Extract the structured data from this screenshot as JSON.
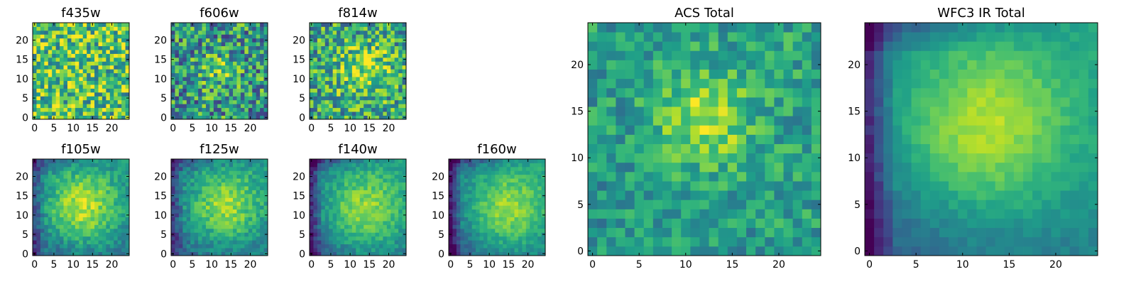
{
  "chart_data": [
    {
      "id": "f435w",
      "type": "heatmap",
      "title": "f435w",
      "grid_size": 25,
      "mode": "noise",
      "base": 0.7,
      "noise": 0.35,
      "seed": 1,
      "xlim": [
        -0.5,
        24.5
      ],
      "ylim": [
        -0.5,
        24.5
      ],
      "xticks": [
        0,
        5,
        10,
        15,
        20
      ],
      "yticks": [
        0,
        5,
        10,
        15,
        20
      ],
      "colormap": "viridis"
    },
    {
      "id": "f606w",
      "type": "heatmap",
      "title": "f606w",
      "grid_size": 25,
      "mode": "noise",
      "base": 0.52,
      "noise": 0.35,
      "peak": 0.25,
      "peak_x": 12,
      "peak_y": 12,
      "sigma": 3,
      "seed": 2,
      "xlim": [
        -0.5,
        24.5
      ],
      "ylim": [
        -0.5,
        24.5
      ],
      "xticks": [
        0,
        5,
        10,
        15,
        20
      ],
      "yticks": [
        0,
        5,
        10,
        15,
        20
      ],
      "colormap": "viridis"
    },
    {
      "id": "f814w",
      "type": "heatmap",
      "title": "f814w",
      "grid_size": 25,
      "mode": "noise",
      "base": 0.58,
      "noise": 0.32,
      "peak": 0.3,
      "peak_x": 14,
      "peak_y": 12,
      "sigma": 5,
      "seed": 3,
      "xlim": [
        -0.5,
        24.5
      ],
      "ylim": [
        -0.5,
        24.5
      ],
      "xticks": [
        0,
        5,
        10,
        15,
        20
      ],
      "yticks": [
        0,
        5,
        10,
        15,
        20
      ],
      "colormap": "viridis"
    },
    {
      "id": "f105w",
      "type": "heatmap",
      "title": "f105w",
      "grid_size": 25,
      "mode": "smooth",
      "base": 0.4,
      "noise": 0.12,
      "peak": 0.5,
      "peak_x": 12,
      "peak_y": 12,
      "sigma": 7,
      "grad": 0.2,
      "seed": 4,
      "xlim": [
        -0.5,
        24.5
      ],
      "ylim": [
        -0.5,
        24.5
      ],
      "xticks": [
        0,
        5,
        10,
        15,
        20
      ],
      "yticks": [
        0,
        5,
        10,
        15,
        20
      ],
      "colormap": "viridis"
    },
    {
      "id": "f125w",
      "type": "heatmap",
      "title": "f125w",
      "grid_size": 25,
      "mode": "smooth",
      "base": 0.4,
      "noise": 0.12,
      "peak": 0.45,
      "peak_x": 13,
      "peak_y": 12,
      "sigma": 7,
      "grad": 0.22,
      "seed": 5,
      "xlim": [
        -0.5,
        24.5
      ],
      "ylim": [
        -0.5,
        24.5
      ],
      "xticks": [
        0,
        5,
        10,
        15,
        20
      ],
      "yticks": [
        0,
        5,
        10,
        15,
        20
      ],
      "colormap": "viridis"
    },
    {
      "id": "f140w",
      "type": "heatmap",
      "title": "f140w",
      "grid_size": 25,
      "mode": "smooth",
      "base": 0.38,
      "noise": 0.1,
      "peak": 0.45,
      "peak_x": 13,
      "peak_y": 11,
      "sigma": 8,
      "grad": 0.3,
      "seed": 6,
      "xlim": [
        -0.5,
        24.5
      ],
      "ylim": [
        -0.5,
        24.5
      ],
      "xticks": [
        0,
        5,
        10,
        15,
        20
      ],
      "yticks": [
        0,
        5,
        10,
        15,
        20
      ],
      "colormap": "viridis"
    },
    {
      "id": "f160w",
      "type": "heatmap",
      "title": "f160w",
      "grid_size": 25,
      "mode": "smooth",
      "base": 0.38,
      "noise": 0.09,
      "peak": 0.45,
      "peak_x": 14,
      "peak_y": 11,
      "sigma": 8,
      "grad": 0.32,
      "seed": 7,
      "xlim": [
        -0.5,
        24.5
      ],
      "ylim": [
        -0.5,
        24.5
      ],
      "xticks": [
        0,
        5,
        10,
        15,
        20
      ],
      "yticks": [
        0,
        5,
        10,
        15,
        20
      ],
      "colormap": "viridis"
    },
    {
      "id": "acs-total",
      "type": "heatmap",
      "title": "ACS Total",
      "grid_size": 25,
      "mode": "noise",
      "base": 0.55,
      "noise": 0.18,
      "peak": 0.35,
      "peak_x": 12,
      "peak_y": 14,
      "sigma": 3.5,
      "grad": 0.05,
      "seed": 8,
      "xlim": [
        -0.5,
        24.5
      ],
      "ylim": [
        -0.5,
        24.5
      ],
      "xticks": [
        0,
        5,
        10,
        15,
        20
      ],
      "yticks": [
        0,
        5,
        10,
        15,
        20
      ],
      "colormap": "viridis"
    },
    {
      "id": "wfc3-ir-total",
      "type": "heatmap",
      "title": "WFC3 IR Total",
      "grid_size": 25,
      "mode": "smooth",
      "base": 0.42,
      "noise": 0.05,
      "peak": 0.45,
      "peak_x": 12,
      "peak_y": 13,
      "sigma": 7,
      "grad": 0.3,
      "seed": 9,
      "xlim": [
        -0.5,
        24.5
      ],
      "ylim": [
        -0.5,
        24.5
      ],
      "xticks": [
        0,
        5,
        10,
        15,
        20
      ],
      "yticks": [
        0,
        5,
        10,
        15,
        20
      ],
      "colormap": "viridis"
    }
  ]
}
